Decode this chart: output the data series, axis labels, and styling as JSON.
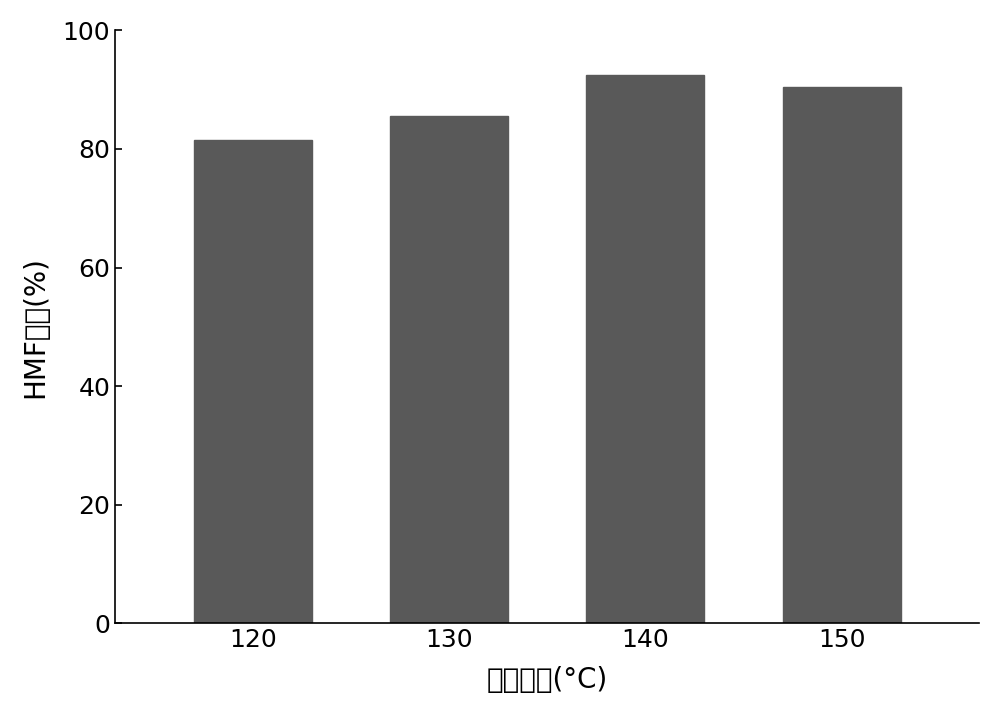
{
  "categories": [
    "120",
    "130",
    "140",
    "150"
  ],
  "values": [
    81.5,
    85.5,
    92.5,
    90.5
  ],
  "bar_color": "#595959",
  "xlabel": "反应温度(°C)",
  "ylabel": "HMF产率(%)",
  "ylim": [
    0,
    100
  ],
  "yticks": [
    0,
    20,
    40,
    60,
    80,
    100
  ],
  "bar_width": 0.6,
  "xlabel_fontsize": 20,
  "ylabel_fontsize": 20,
  "tick_fontsize": 18,
  "background_color": "#ffffff"
}
